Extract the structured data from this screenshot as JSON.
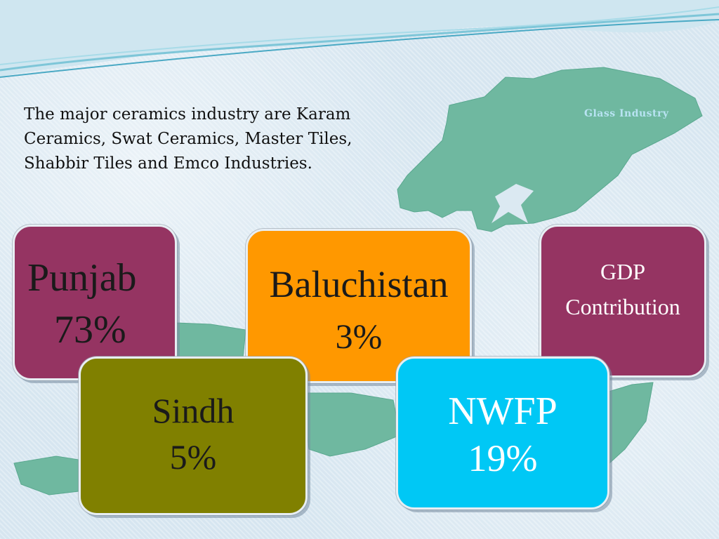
{
  "slide": {
    "intro_text": "The major ceramics industry are Karam\nCeramics, Swat Ceramics, Master Tiles,\nShabbir Tiles and Emco Industries.",
    "corner_title": "Glass Industry",
    "colors": {
      "background": "#d8e7f1",
      "map": "#6fb8a0",
      "maroon": "#953462",
      "orange": "#ff9800",
      "olive": "#808000",
      "cyan": "#00c8f5"
    }
  },
  "boxes": {
    "punjab": {
      "name": "Punjab",
      "value": "73%"
    },
    "baluchistan": {
      "name": "Baluchistan",
      "value": "3%"
    },
    "gdp": {
      "name": "GDP",
      "value": "Contribution"
    },
    "sindh": {
      "name": "Sindh",
      "value": "5%"
    },
    "nwfp": {
      "name": "NWFP",
      "value": "19%"
    }
  }
}
